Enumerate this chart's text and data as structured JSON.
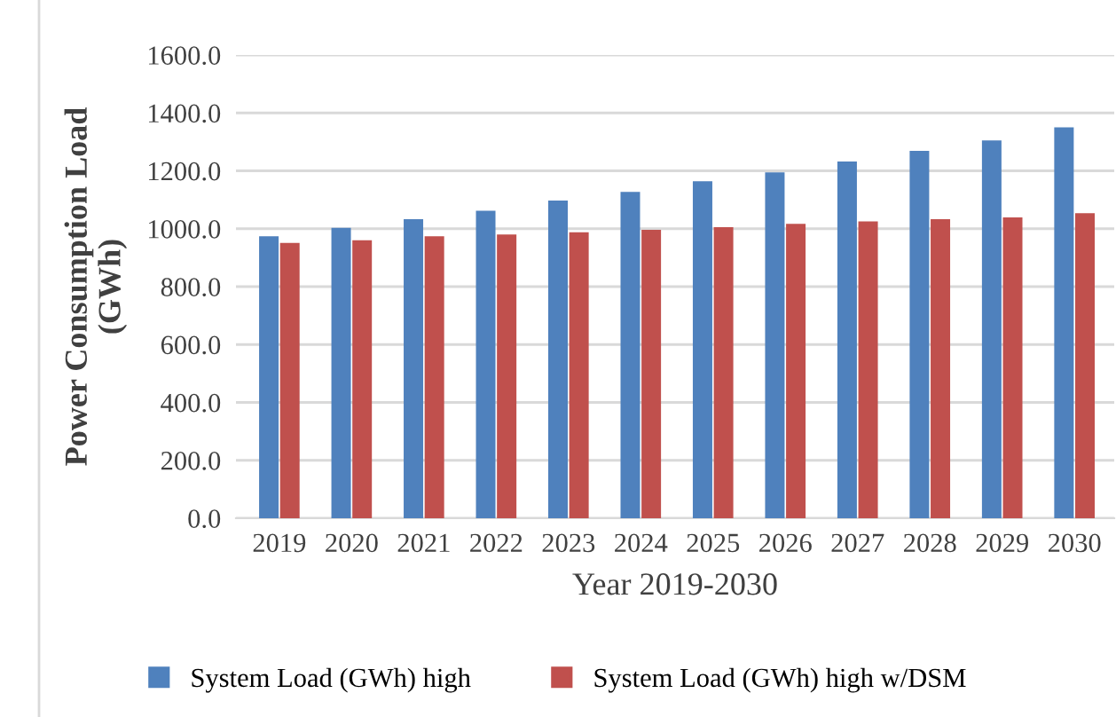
{
  "chart_data": {
    "type": "bar",
    "xlabel": "Year 2019-2030",
    "ylabel": "Power Consumption Load\n(GWh)",
    "categories": [
      "2019",
      "2020",
      "2021",
      "2022",
      "2023",
      "2024",
      "2025",
      "2026",
      "2027",
      "2028",
      "2029",
      "2030"
    ],
    "series": [
      {
        "name": "System Load (GWh) high",
        "color": "#4f81bd",
        "values": [
          974,
          1003,
          1033,
          1062,
          1097,
          1127,
          1164,
          1195,
          1232,
          1269,
          1305,
          1350
        ]
      },
      {
        "name": "System Load (GWh) high w/DSM",
        "color": "#c0504d",
        "values": [
          951,
          960,
          974,
          980,
          988,
          996,
          1005,
          1017,
          1025,
          1033,
          1039,
          1054
        ]
      }
    ],
    "ylim": [
      0,
      1600
    ],
    "yticks": [
      {
        "value": 0,
        "label": "0.0"
      },
      {
        "value": 200,
        "label": "200.0"
      },
      {
        "value": 400,
        "label": "400.0"
      },
      {
        "value": 600,
        "label": "600.0"
      },
      {
        "value": 800,
        "label": "800.0"
      },
      {
        "value": 1000,
        "label": "1000.0"
      },
      {
        "value": 1200,
        "label": "1200.0"
      },
      {
        "value": 1400,
        "label": "1400.0"
      },
      {
        "value": 1600,
        "label": "1600.0"
      }
    ],
    "grid": "y",
    "legend": "bottom"
  }
}
